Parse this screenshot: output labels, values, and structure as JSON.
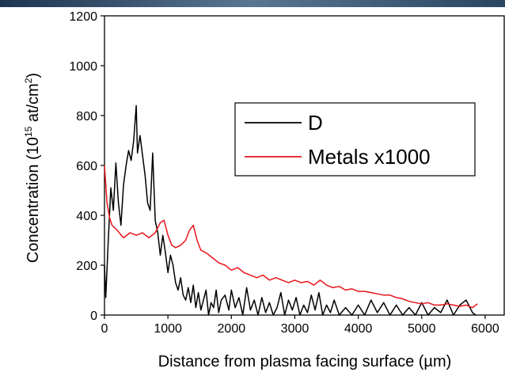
{
  "chart_data": {
    "type": "line",
    "xlabel": "Distance from plasma facing surface (µm)",
    "ylabel_parts": [
      "Concentration (10",
      "15",
      " at/cm",
      "2",
      ")"
    ],
    "xlim": [
      0,
      6300
    ],
    "ylim": [
      0,
      1200
    ],
    "xticks": [
      0,
      1000,
      2000,
      3000,
      4000,
      5000,
      6000
    ],
    "yticks": [
      0,
      200,
      400,
      600,
      800,
      1000,
      1200
    ],
    "legend": "upper right",
    "series": [
      {
        "name": "D",
        "color": "#000000",
        "x": [
          0,
          20,
          60,
          100,
          140,
          180,
          220,
          260,
          300,
          340,
          380,
          420,
          460,
          500,
          520,
          560,
          600,
          640,
          680,
          720,
          760,
          800,
          840,
          880,
          920,
          960,
          1000,
          1040,
          1080,
          1120,
          1160,
          1200,
          1240,
          1280,
          1320,
          1360,
          1400,
          1440,
          1480,
          1520,
          1560,
          1600,
          1640,
          1680,
          1720,
          1760,
          1800,
          1840,
          1900,
          1960,
          2000,
          2060,
          2120,
          2180,
          2240,
          2300,
          2360,
          2420,
          2480,
          2540,
          2600,
          2660,
          2720,
          2780,
          2840,
          2900,
          2960,
          3020,
          3080,
          3140,
          3200,
          3260,
          3320,
          3380,
          3440,
          3500,
          3560,
          3620,
          3700,
          3800,
          3900,
          4000,
          4100,
          4200,
          4300,
          4400,
          4500,
          4600,
          4700,
          4800,
          4900,
          5000,
          5100,
          5200,
          5300,
          5400,
          5500,
          5600,
          5700,
          5800,
          5850
        ],
        "values": [
          200,
          70,
          300,
          510,
          420,
          610,
          450,
          360,
          520,
          600,
          660,
          620,
          700,
          840,
          650,
          720,
          640,
          560,
          450,
          420,
          650,
          380,
          330,
          240,
          320,
          250,
          170,
          240,
          200,
          130,
          100,
          150,
          80,
          60,
          110,
          50,
          120,
          30,
          90,
          20,
          60,
          100,
          0,
          50,
          30,
          100,
          10,
          60,
          80,
          20,
          100,
          30,
          70,
          0,
          110,
          20,
          60,
          0,
          70,
          10,
          50,
          0,
          30,
          90,
          0,
          60,
          20,
          70,
          0,
          40,
          10,
          80,
          20,
          90,
          0,
          40,
          10,
          60,
          0,
          30,
          0,
          40,
          0,
          60,
          10,
          50,
          0,
          40,
          0,
          30,
          0,
          50,
          0,
          30,
          10,
          60,
          0,
          40,
          60,
          10,
          0
        ]
      },
      {
        "name": "Metals x1000",
        "color": "#e8141c",
        "x": [
          0,
          40,
          80,
          120,
          200,
          300,
          400,
          500,
          600,
          700,
          800,
          880,
          940,
          1000,
          1060,
          1120,
          1200,
          1280,
          1340,
          1400,
          1460,
          1520,
          1600,
          1700,
          1800,
          1900,
          2000,
          2100,
          2200,
          2300,
          2400,
          2500,
          2600,
          2700,
          2800,
          2900,
          3000,
          3100,
          3200,
          3300,
          3400,
          3500,
          3600,
          3700,
          3800,
          3900,
          4000,
          4100,
          4200,
          4300,
          4400,
          4500,
          4600,
          4700,
          4800,
          4900,
          5000,
          5100,
          5200,
          5300,
          5400,
          5500,
          5600,
          5700,
          5800,
          5880
        ],
        "values": [
          600,
          450,
          390,
          360,
          340,
          310,
          330,
          320,
          330,
          310,
          330,
          370,
          380,
          320,
          280,
          270,
          280,
          300,
          340,
          360,
          300,
          260,
          250,
          230,
          210,
          200,
          180,
          190,
          170,
          160,
          150,
          160,
          140,
          150,
          140,
          130,
          140,
          130,
          135,
          120,
          140,
          120,
          110,
          115,
          100,
          105,
          95,
          95,
          90,
          85,
          80,
          80,
          70,
          65,
          55,
          50,
          45,
          50,
          40,
          40,
          45,
          40,
          35,
          40,
          30,
          45
        ]
      }
    ]
  }
}
